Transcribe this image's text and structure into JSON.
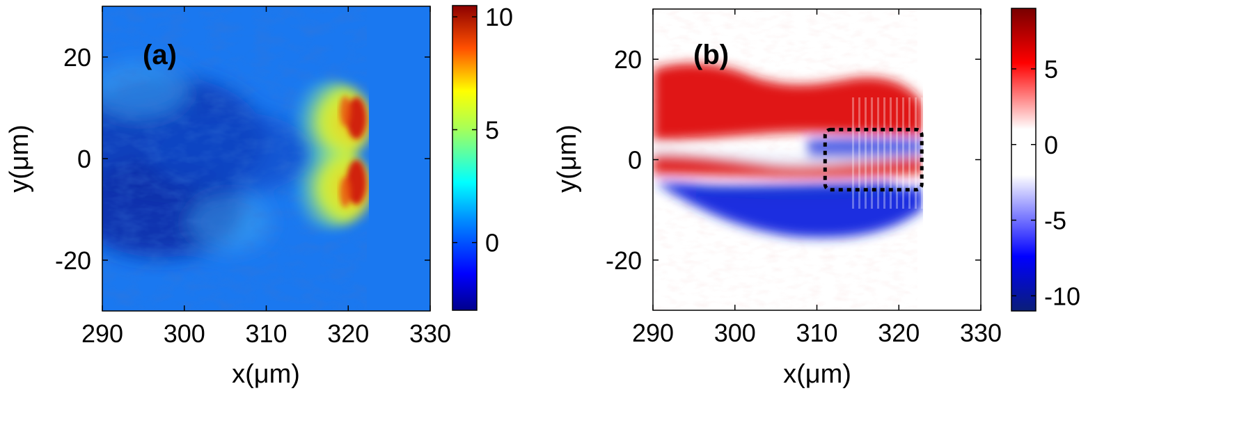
{
  "chart_data": [
    {
      "type": "heatmap",
      "panel_label": "(a)",
      "xlabel": "x(μm)",
      "ylabel": "y(μm)",
      "xlim": [
        290,
        330
      ],
      "ylim": [
        -30,
        30
      ],
      "xticks": [
        290,
        300,
        310,
        320,
        330
      ],
      "yticks": [
        -20,
        0,
        20
      ],
      "xtick_labels": [
        "290",
        "300",
        "310",
        "320",
        "330"
      ],
      "ytick_labels": [
        "-20",
        "0",
        "20"
      ],
      "colormap": "jet",
      "colorbar": {
        "range": [
          -3,
          10.5
        ],
        "ticks": [
          0,
          5,
          10
        ],
        "tick_labels": [
          "0",
          "5",
          "10"
        ]
      },
      "features": {
        "background_value": 0,
        "beam_front_x": 322.5,
        "lobe_centers_y": [
          5,
          -5
        ],
        "peak_value": 10
      }
    },
    {
      "type": "heatmap",
      "panel_label": "(b)",
      "xlabel": "x(μm)",
      "ylabel": "y(μm)",
      "xlim": [
        290,
        330
      ],
      "ylim": [
        -30,
        30
      ],
      "xticks": [
        290,
        300,
        310,
        320,
        330
      ],
      "yticks": [
        -20,
        0,
        20
      ],
      "xtick_labels": [
        "290",
        "300",
        "310",
        "320",
        "330"
      ],
      "ytick_labels": [
        "-20",
        "0",
        "20"
      ],
      "colormap": "blue-white-red",
      "colorbar": {
        "range": [
          -11,
          9
        ],
        "ticks": [
          -10,
          -5,
          0,
          5
        ],
        "tick_labels": [
          "-10",
          "-5",
          "0",
          "5"
        ]
      },
      "annotation": {
        "type": "dashed-box",
        "x_range": [
          311,
          322.8
        ],
        "y_range": [
          -6,
          6
        ]
      }
    }
  ],
  "colors": {
    "jet_background": "#1a78f0",
    "jet_dark": "#0a2fa8",
    "jet_cyan": "#3ad0f0",
    "jet_yellow": "#e8ee30",
    "jet_red": "#c81010",
    "red_lobe": "#e01818",
    "blue_lobe": "#1830d8",
    "box_line": "#000000"
  }
}
